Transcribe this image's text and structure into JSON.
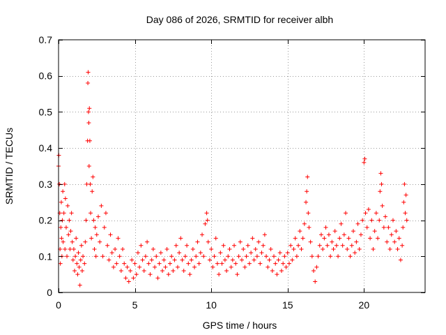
{
  "chart_data": {
    "type": "scatter",
    "title": "Day 086 of 2026, SRMTID for receiver albh",
    "xlabel": "GPS time / hours",
    "ylabel": "SRMTID / TECUs",
    "xlim": [
      0,
      24
    ],
    "ylim": [
      0,
      0.7
    ],
    "xticks": [
      0,
      5,
      10,
      15,
      20
    ],
    "xtick_labels": [
      "0",
      "5",
      "10",
      "15",
      "20"
    ],
    "yticks": [
      0,
      0.1,
      0.2,
      0.3,
      0.4,
      0.5,
      0.6,
      0.7
    ],
    "ytick_labels": [
      "0",
      "0.1",
      "0.2",
      "0.3",
      "0.4",
      "0.5",
      "0.6",
      "0.7"
    ],
    "grid": true,
    "marker": "+",
    "color": "#ff0000",
    "series": [
      {
        "name": "SRMTID",
        "points": [
          [
            0.0,
            0.35
          ],
          [
            0.02,
            0.38
          ],
          [
            0.05,
            0.3
          ],
          [
            0.08,
            0.22
          ],
          [
            0.1,
            0.12
          ],
          [
            0.12,
            0.08
          ],
          [
            0.15,
            0.18
          ],
          [
            0.18,
            0.25
          ],
          [
            0.2,
            0.15
          ],
          [
            0.22,
            0.1
          ],
          [
            0.25,
            0.2
          ],
          [
            0.28,
            0.28
          ],
          [
            0.3,
            0.14
          ],
          [
            0.35,
            0.22
          ],
          [
            0.4,
            0.3
          ],
          [
            0.42,
            0.12
          ],
          [
            0.45,
            0.26
          ],
          [
            0.5,
            0.18
          ],
          [
            0.55,
            0.1
          ],
          [
            0.6,
            0.24
          ],
          [
            0.65,
            0.16
          ],
          [
            0.7,
            0.2
          ],
          [
            0.75,
            0.12
          ],
          [
            0.8,
            0.17
          ],
          [
            0.85,
            0.22
          ],
          [
            0.9,
            0.14
          ],
          [
            0.95,
            0.09
          ],
          [
            1.0,
            0.12
          ],
          [
            1.05,
            0.06
          ],
          [
            1.1,
            0.1
          ],
          [
            1.15,
            0.15
          ],
          [
            1.2,
            0.08
          ],
          [
            1.25,
            0.05
          ],
          [
            1.3,
            0.11
          ],
          [
            1.35,
            0.07
          ],
          [
            1.4,
            0.02
          ],
          [
            1.45,
            0.09
          ],
          [
            1.5,
            0.13
          ],
          [
            1.55,
            0.06
          ],
          [
            1.6,
            0.1
          ],
          [
            1.7,
            0.08
          ],
          [
            1.75,
            0.14
          ],
          [
            1.8,
            0.2
          ],
          [
            1.85,
            0.3
          ],
          [
            1.9,
            0.42
          ],
          [
            1.92,
            0.58
          ],
          [
            1.94,
            0.61
          ],
          [
            1.96,
            0.5
          ],
          [
            1.98,
            0.47
          ],
          [
            2.0,
            0.35
          ],
          [
            2.02,
            0.51
          ],
          [
            2.05,
            0.42
          ],
          [
            2.08,
            0.3
          ],
          [
            2.1,
            0.22
          ],
          [
            2.15,
            0.15
          ],
          [
            2.2,
            0.28
          ],
          [
            2.25,
            0.32
          ],
          [
            2.3,
            0.2
          ],
          [
            2.35,
            0.12
          ],
          [
            2.4,
            0.18
          ],
          [
            2.45,
            0.1
          ],
          [
            2.5,
            0.16
          ],
          [
            2.6,
            0.21
          ],
          [
            2.7,
            0.14
          ],
          [
            2.8,
            0.24
          ],
          [
            2.9,
            0.1
          ],
          [
            3.0,
            0.18
          ],
          [
            3.1,
            0.22
          ],
          [
            3.2,
            0.13
          ],
          [
            3.3,
            0.09
          ],
          [
            3.4,
            0.16
          ],
          [
            3.5,
            0.11
          ],
          [
            3.6,
            0.07
          ],
          [
            3.7,
            0.12
          ],
          [
            3.8,
            0.08
          ],
          [
            3.9,
            0.15
          ],
          [
            4.0,
            0.1
          ],
          [
            4.1,
            0.06
          ],
          [
            4.2,
            0.12
          ],
          [
            4.3,
            0.08
          ],
          [
            4.4,
            0.04
          ],
          [
            4.5,
            0.07
          ],
          [
            4.6,
            0.03
          ],
          [
            4.7,
            0.06
          ],
          [
            4.8,
            0.09
          ],
          [
            4.9,
            0.04
          ],
          [
            5.0,
            0.08
          ],
          [
            5.1,
            0.05
          ],
          [
            5.2,
            0.11
          ],
          [
            5.3,
            0.07
          ],
          [
            5.4,
            0.13
          ],
          [
            5.5,
            0.09
          ],
          [
            5.6,
            0.06
          ],
          [
            5.7,
            0.1
          ],
          [
            5.8,
            0.14
          ],
          [
            5.9,
            0.08
          ],
          [
            6.0,
            0.05
          ],
          [
            6.1,
            0.09
          ],
          [
            6.2,
            0.12
          ],
          [
            6.3,
            0.07
          ],
          [
            6.4,
            0.1
          ],
          [
            6.5,
            0.04
          ],
          [
            6.6,
            0.08
          ],
          [
            6.7,
            0.11
          ],
          [
            6.8,
            0.06
          ],
          [
            6.9,
            0.09
          ],
          [
            7.0,
            0.07
          ],
          [
            7.1,
            0.12
          ],
          [
            7.2,
            0.05
          ],
          [
            7.3,
            0.08
          ],
          [
            7.4,
            0.1
          ],
          [
            7.5,
            0.06
          ],
          [
            7.6,
            0.09
          ],
          [
            7.7,
            0.13
          ],
          [
            7.8,
            0.07
          ],
          [
            7.9,
            0.11
          ],
          [
            8.0,
            0.15
          ],
          [
            8.1,
            0.09
          ],
          [
            8.2,
            0.06
          ],
          [
            8.3,
            0.1
          ],
          [
            8.4,
            0.13
          ],
          [
            8.5,
            0.08
          ],
          [
            8.6,
            0.05
          ],
          [
            8.7,
            0.09
          ],
          [
            8.8,
            0.12
          ],
          [
            8.9,
            0.07
          ],
          [
            9.0,
            0.1
          ],
          [
            9.1,
            0.14
          ],
          [
            9.2,
            0.08
          ],
          [
            9.3,
            0.11
          ],
          [
            9.4,
            0.16
          ],
          [
            9.5,
            0.1
          ],
          [
            9.6,
            0.19
          ],
          [
            9.7,
            0.22
          ],
          [
            9.75,
            0.2
          ],
          [
            9.8,
            0.14
          ],
          [
            9.9,
            0.09
          ],
          [
            10.0,
            0.12
          ],
          [
            10.1,
            0.07
          ],
          [
            10.2,
            0.1
          ],
          [
            10.3,
            0.15
          ],
          [
            10.4,
            0.08
          ],
          [
            10.5,
            0.05
          ],
          [
            10.6,
            0.11
          ],
          [
            10.7,
            0.08
          ],
          [
            10.8,
            0.13
          ],
          [
            10.9,
            0.09
          ],
          [
            11.0,
            0.06
          ],
          [
            11.1,
            0.1
          ],
          [
            11.2,
            0.12
          ],
          [
            11.3,
            0.07
          ],
          [
            11.4,
            0.09
          ],
          [
            11.5,
            0.13
          ],
          [
            11.6,
            0.08
          ],
          [
            11.7,
            0.05
          ],
          [
            11.8,
            0.1
          ],
          [
            11.9,
            0.14
          ],
          [
            12.0,
            0.09
          ],
          [
            12.1,
            0.12
          ],
          [
            12.2,
            0.07
          ],
          [
            12.3,
            0.1
          ],
          [
            12.4,
            0.13
          ],
          [
            12.5,
            0.08
          ],
          [
            12.6,
            0.11
          ],
          [
            12.7,
            0.15
          ],
          [
            12.8,
            0.09
          ],
          [
            12.9,
            0.12
          ],
          [
            13.0,
            0.1
          ],
          [
            13.1,
            0.14
          ],
          [
            13.2,
            0.08
          ],
          [
            13.3,
            0.11
          ],
          [
            13.4,
            0.13
          ],
          [
            13.5,
            0.16
          ],
          [
            13.6,
            0.1
          ],
          [
            13.7,
            0.07
          ],
          [
            13.8,
            0.09
          ],
          [
            13.9,
            0.12
          ],
          [
            14.0,
            0.06
          ],
          [
            14.1,
            0.1
          ],
          [
            14.2,
            0.08
          ],
          [
            14.3,
            0.05
          ],
          [
            14.4,
            0.09
          ],
          [
            14.5,
            0.11
          ],
          [
            14.6,
            0.06
          ],
          [
            14.7,
            0.08
          ],
          [
            14.8,
            0.1
          ],
          [
            14.9,
            0.07
          ],
          [
            15.0,
            0.11
          ],
          [
            15.1,
            0.08
          ],
          [
            15.2,
            0.13
          ],
          [
            15.3,
            0.09
          ],
          [
            15.4,
            0.12
          ],
          [
            15.5,
            0.15
          ],
          [
            15.6,
            0.1
          ],
          [
            15.7,
            0.13
          ],
          [
            15.8,
            0.17
          ],
          [
            15.9,
            0.12
          ],
          [
            16.0,
            0.15
          ],
          [
            16.1,
            0.19
          ],
          [
            16.2,
            0.25
          ],
          [
            16.25,
            0.28
          ],
          [
            16.3,
            0.32
          ],
          [
            16.35,
            0.22
          ],
          [
            16.4,
            0.18
          ],
          [
            16.5,
            0.14
          ],
          [
            16.6,
            0.1
          ],
          [
            16.7,
            0.06
          ],
          [
            16.8,
            0.03
          ],
          [
            16.9,
            0.07
          ],
          [
            17.0,
            0.1
          ],
          [
            17.1,
            0.13
          ],
          [
            17.2,
            0.16
          ],
          [
            17.3,
            0.12
          ],
          [
            17.4,
            0.15
          ],
          [
            17.5,
            0.18
          ],
          [
            17.6,
            0.13
          ],
          [
            17.7,
            0.16
          ],
          [
            17.8,
            0.1
          ],
          [
            17.9,
            0.14
          ],
          [
            18.0,
            0.12
          ],
          [
            18.1,
            0.17
          ],
          [
            18.2,
            0.13
          ],
          [
            18.3,
            0.1
          ],
          [
            18.4,
            0.15
          ],
          [
            18.5,
            0.19
          ],
          [
            18.6,
            0.13
          ],
          [
            18.7,
            0.16
          ],
          [
            18.8,
            0.22
          ],
          [
            18.9,
            0.12
          ],
          [
            19.0,
            0.15
          ],
          [
            19.1,
            0.1
          ],
          [
            19.2,
            0.13
          ],
          [
            19.3,
            0.17
          ],
          [
            19.4,
            0.11
          ],
          [
            19.5,
            0.14
          ],
          [
            19.6,
            0.19
          ],
          [
            19.7,
            0.12
          ],
          [
            19.8,
            0.16
          ],
          [
            19.9,
            0.2
          ],
          [
            20.0,
            0.36
          ],
          [
            20.05,
            0.37
          ],
          [
            20.1,
            0.22
          ],
          [
            20.2,
            0.18
          ],
          [
            20.3,
            0.23
          ],
          [
            20.4,
            0.15
          ],
          [
            20.5,
            0.2
          ],
          [
            20.6,
            0.12
          ],
          [
            20.7,
            0.17
          ],
          [
            20.8,
            0.22
          ],
          [
            20.9,
            0.15
          ],
          [
            21.0,
            0.2
          ],
          [
            21.05,
            0.28
          ],
          [
            21.1,
            0.33
          ],
          [
            21.15,
            0.3
          ],
          [
            21.2,
            0.24
          ],
          [
            21.3,
            0.18
          ],
          [
            21.4,
            0.21
          ],
          [
            21.5,
            0.14
          ],
          [
            21.6,
            0.18
          ],
          [
            21.7,
            0.12
          ],
          [
            21.8,
            0.16
          ],
          [
            21.9,
            0.2
          ],
          [
            22.0,
            0.14
          ],
          [
            22.1,
            0.17
          ],
          [
            22.2,
            0.12
          ],
          [
            22.3,
            0.15
          ],
          [
            22.4,
            0.09
          ],
          [
            22.5,
            0.13
          ],
          [
            22.55,
            0.18
          ],
          [
            22.6,
            0.25
          ],
          [
            22.65,
            0.3
          ],
          [
            22.7,
            0.22
          ],
          [
            22.75,
            0.27
          ],
          [
            22.8,
            0.2
          ]
        ]
      }
    ]
  }
}
